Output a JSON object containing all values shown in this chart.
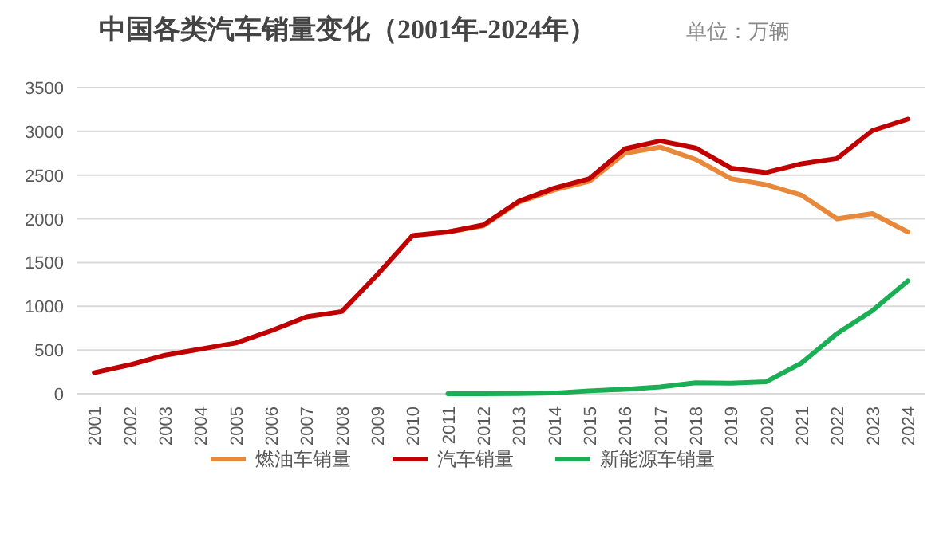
{
  "chart_data": {
    "type": "line",
    "title": "中国各类汽车销量变化（2001年-2024年）",
    "subtitle": "单位：万辆",
    "categories": [
      "2001",
      "2002",
      "2003",
      "2004",
      "2005",
      "2006",
      "2007",
      "2008",
      "2009",
      "2010",
      "2011",
      "2012",
      "2013",
      "2014",
      "2015",
      "2016",
      "2017",
      "2018",
      "2019",
      "2020",
      "2021",
      "2022",
      "2023",
      "2024"
    ],
    "ylim": [
      0,
      3500
    ],
    "yticks": [
      0,
      500,
      1000,
      1500,
      2000,
      2500,
      3000,
      3500
    ],
    "grid": "y",
    "legend": "bottom",
    "series": [
      {
        "name": "燃油车销量",
        "color": "#e8883a",
        "values": [
          null,
          null,
          null,
          null,
          null,
          null,
          null,
          null,
          null,
          null,
          1850,
          1920,
          2190,
          2330,
          2430,
          2750,
          2820,
          2680,
          2460,
          2390,
          2270,
          2000,
          2060,
          1850
        ]
      },
      {
        "name": "汽车销量",
        "color": "#c00000",
        "values": [
          240,
          330,
          440,
          510,
          580,
          720,
          880,
          940,
          1360,
          1810,
          1850,
          1930,
          2200,
          2350,
          2460,
          2800,
          2890,
          2810,
          2580,
          2530,
          2630,
          2690,
          3010,
          3140
        ]
      },
      {
        "name": "新能源车销量",
        "color": "#1aaf54",
        "values": [
          null,
          null,
          null,
          null,
          null,
          null,
          null,
          null,
          null,
          null,
          1,
          1,
          2,
          8,
          33,
          51,
          78,
          126,
          121,
          137,
          352,
          689,
          950,
          1290
        ]
      }
    ]
  }
}
